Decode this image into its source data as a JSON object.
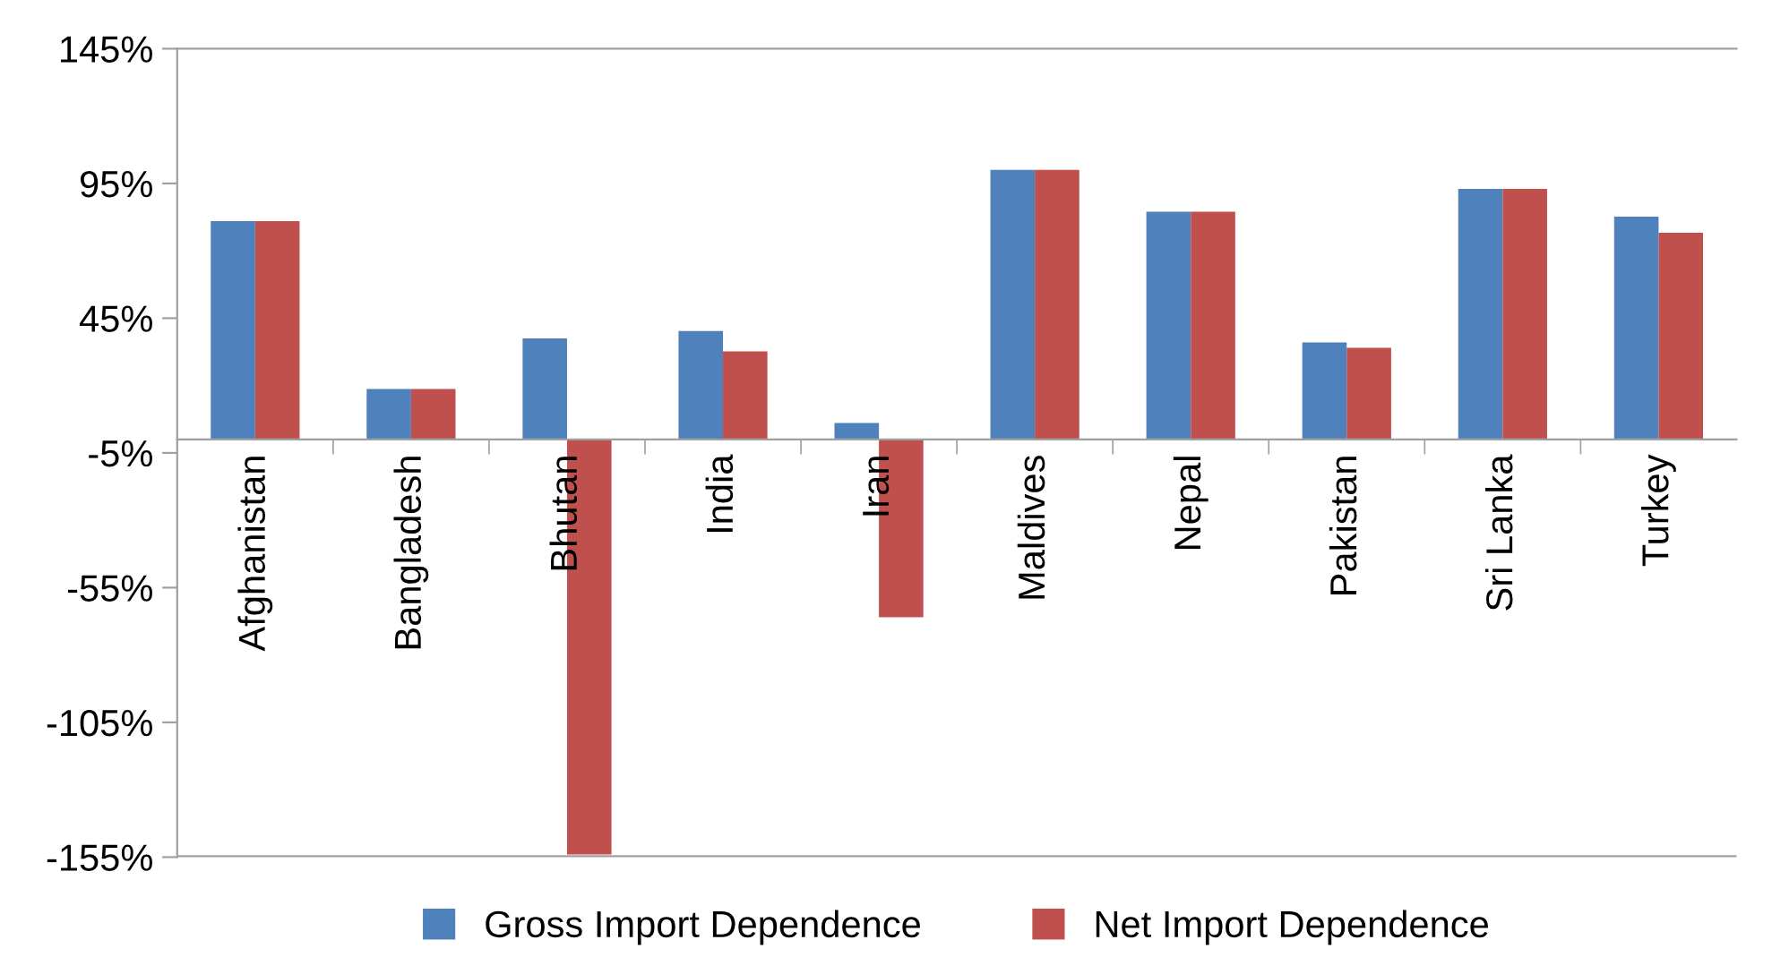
{
  "chart_data": {
    "type": "bar",
    "categories": [
      "Afghanistan",
      "Bangladesh",
      "Bhutan",
      "India",
      "Iran",
      "Maldives",
      "Nepal",
      "Pakistan",
      "Sri Lanka",
      "Turkey"
    ],
    "series": [
      {
        "name": "Gross Import Dependence",
        "color": "#4f81bd",
        "values": [
          81,
          18.7,
          37.5,
          40.2,
          6.1,
          100,
          84.5,
          36,
          93,
          82.7
        ]
      },
      {
        "name": "Net Import Dependence",
        "color": "#c0504d",
        "values": [
          81,
          18.7,
          -154,
          32.7,
          -66,
          100,
          84.5,
          34,
          93,
          76.7
        ]
      }
    ],
    "ylim": [
      -155,
      145
    ],
    "yticks": [
      {
        "value": 145,
        "label": "145%"
      },
      {
        "value": 95,
        "label": "95%"
      },
      {
        "value": 45,
        "label": "45%"
      },
      {
        "value": -5,
        "label": "-5%"
      },
      {
        "value": -55,
        "label": "-55%"
      },
      {
        "value": -105,
        "label": "-105%"
      },
      {
        "value": -155,
        "label": "-155%"
      }
    ],
    "grid": false,
    "legend": "bottom"
  }
}
